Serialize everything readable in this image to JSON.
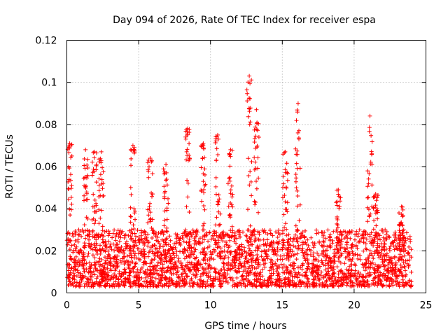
{
  "chart_data": {
    "type": "scatter",
    "title": "Day 094 of 2026, Rate Of TEC Index for receiver espa",
    "xlabel": "GPS time / hours",
    "ylabel": "ROTI / TECUs",
    "xlim": [
      0,
      25
    ],
    "ylim": [
      0,
      0.12
    ],
    "x_ticks": [
      0,
      5,
      10,
      15,
      20,
      25
    ],
    "x_tick_labels": [
      "0",
      "5",
      "10",
      "15",
      "20",
      "25"
    ],
    "y_ticks": [
      0,
      0.02,
      0.04,
      0.06,
      0.08,
      0.1,
      0.12
    ],
    "y_tick_labels": [
      "0",
      "0.02",
      "0.04",
      "0.06",
      "0.08",
      "0.1",
      "0.12"
    ],
    "grid": true,
    "marker": "+",
    "series": [
      {
        "name": "ROTI",
        "color": "#ff0000",
        "data_note": "Dense per-satellite ROTI samples spanning 0-24 h; bulk of values between 0.003 and 0.03 TECU/min, with spikes listed below",
        "x_range": [
          0,
          24
        ],
        "baseline_range": [
          0.003,
          0.03
        ],
        "peaks": [
          {
            "x": 0.2,
            "y": 0.071
          },
          {
            "x": 1.3,
            "y": 0.068
          },
          {
            "x": 1.9,
            "y": 0.067
          },
          {
            "x": 2.4,
            "y": 0.067
          },
          {
            "x": 4.6,
            "y": 0.07
          },
          {
            "x": 5.8,
            "y": 0.064
          },
          {
            "x": 6.9,
            "y": 0.061
          },
          {
            "x": 8.4,
            "y": 0.078
          },
          {
            "x": 9.5,
            "y": 0.071
          },
          {
            "x": 10.5,
            "y": 0.075
          },
          {
            "x": 11.4,
            "y": 0.068
          },
          {
            "x": 12.7,
            "y": 0.103
          },
          {
            "x": 13.2,
            "y": 0.087
          },
          {
            "x": 15.2,
            "y": 0.067
          },
          {
            "x": 16.1,
            "y": 0.09
          },
          {
            "x": 18.9,
            "y": 0.049
          },
          {
            "x": 21.1,
            "y": 0.084
          },
          {
            "x": 21.5,
            "y": 0.047
          },
          {
            "x": 23.3,
            "y": 0.041
          }
        ]
      }
    ]
  }
}
